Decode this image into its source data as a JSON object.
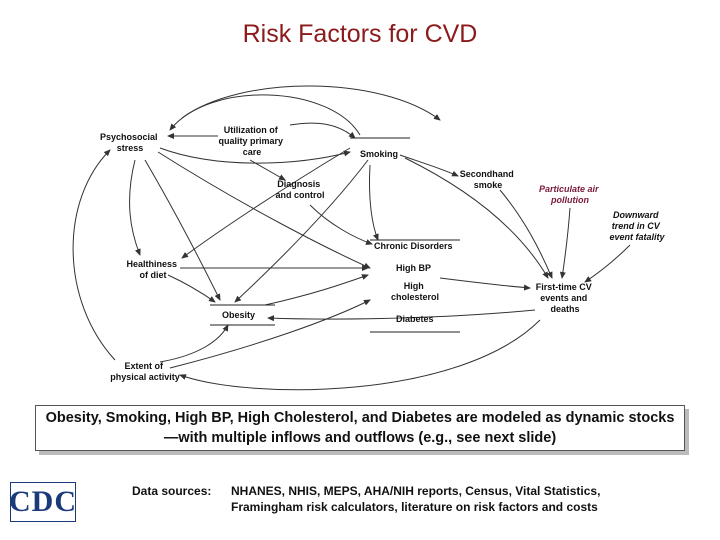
{
  "title": "Risk Factors for CVD",
  "diagram": {
    "nodes": {
      "psychosocial_stress": [
        "Psychosocial",
        "stress"
      ],
      "utilization_primary_care": [
        "Utilization of",
        "quality primary",
        "care"
      ],
      "smoking": "Smoking",
      "diagnosis_control": [
        "Diagnosis",
        "and control"
      ],
      "secondhand_smoke": [
        "Secondhand",
        "smoke"
      ],
      "particulate_air_pollution": [
        "Particulate air",
        "pollution"
      ],
      "downward_trend": [
        "Downward",
        "trend in CV",
        "event fatality"
      ],
      "chronic_disorders": "Chronic Disorders",
      "high_bp": "High BP",
      "high_cholesterol": [
        "High",
        "cholesterol"
      ],
      "diabetes": "Diabetes",
      "healthiness_of_diet": [
        "Healthiness",
        "of diet"
      ],
      "obesity": "Obesity",
      "first_time_cv": [
        "First-time CV",
        "events and",
        "deaths"
      ],
      "physical_activity": [
        "Extent of",
        "physical activity"
      ]
    },
    "colors": {
      "title": "#8b1a1a",
      "particulate": "#7a1a3a",
      "logo": "#1b3a7a"
    }
  },
  "callout": "Obesity, Smoking, High BP, High Cholesterol, and Diabetes are modeled as dynamic stocks—with multiple inflows and outflows (e.g., see next slide)",
  "sources": {
    "label": "Data sources:",
    "line1": "NHANES, NHIS, MEPS, AHA/NIH reports, Census, Vital Statistics,",
    "line2": "Framingham risk calculators, literature on risk factors and costs"
  },
  "logo": {
    "text": "CDC",
    "icon": "cdc-logo"
  }
}
